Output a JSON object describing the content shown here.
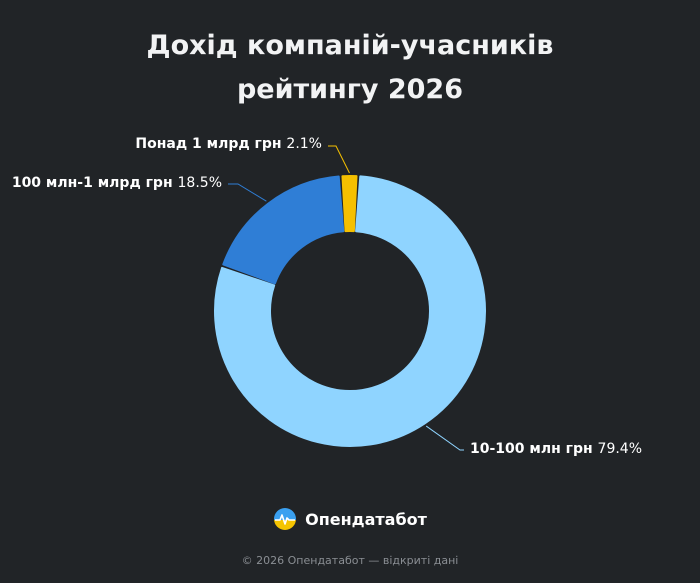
{
  "chart_data": {
    "type": "pie",
    "title_lines": [
      "Дохід компаній-учасників",
      "рейтингу 2026"
    ],
    "slices": [
      {
        "label": "Понад 1 млрд грн",
        "value": 2.1,
        "pct_label": "2.1%",
        "color": "#f5c000"
      },
      {
        "label": "10-100 млн грн",
        "value": 79.4,
        "pct_label": "79.4%",
        "color": "#8fd4ff"
      },
      {
        "label": "100 млн-1 млрд грн",
        "value": 18.5,
        "pct_label": "18.5%",
        "color": "#2f7ed6"
      }
    ]
  },
  "brand": {
    "name": "Опендатабот",
    "icon": "opendatabot-logo-icon"
  },
  "footer": "© 2026 Опендатабот — відкриті дані"
}
